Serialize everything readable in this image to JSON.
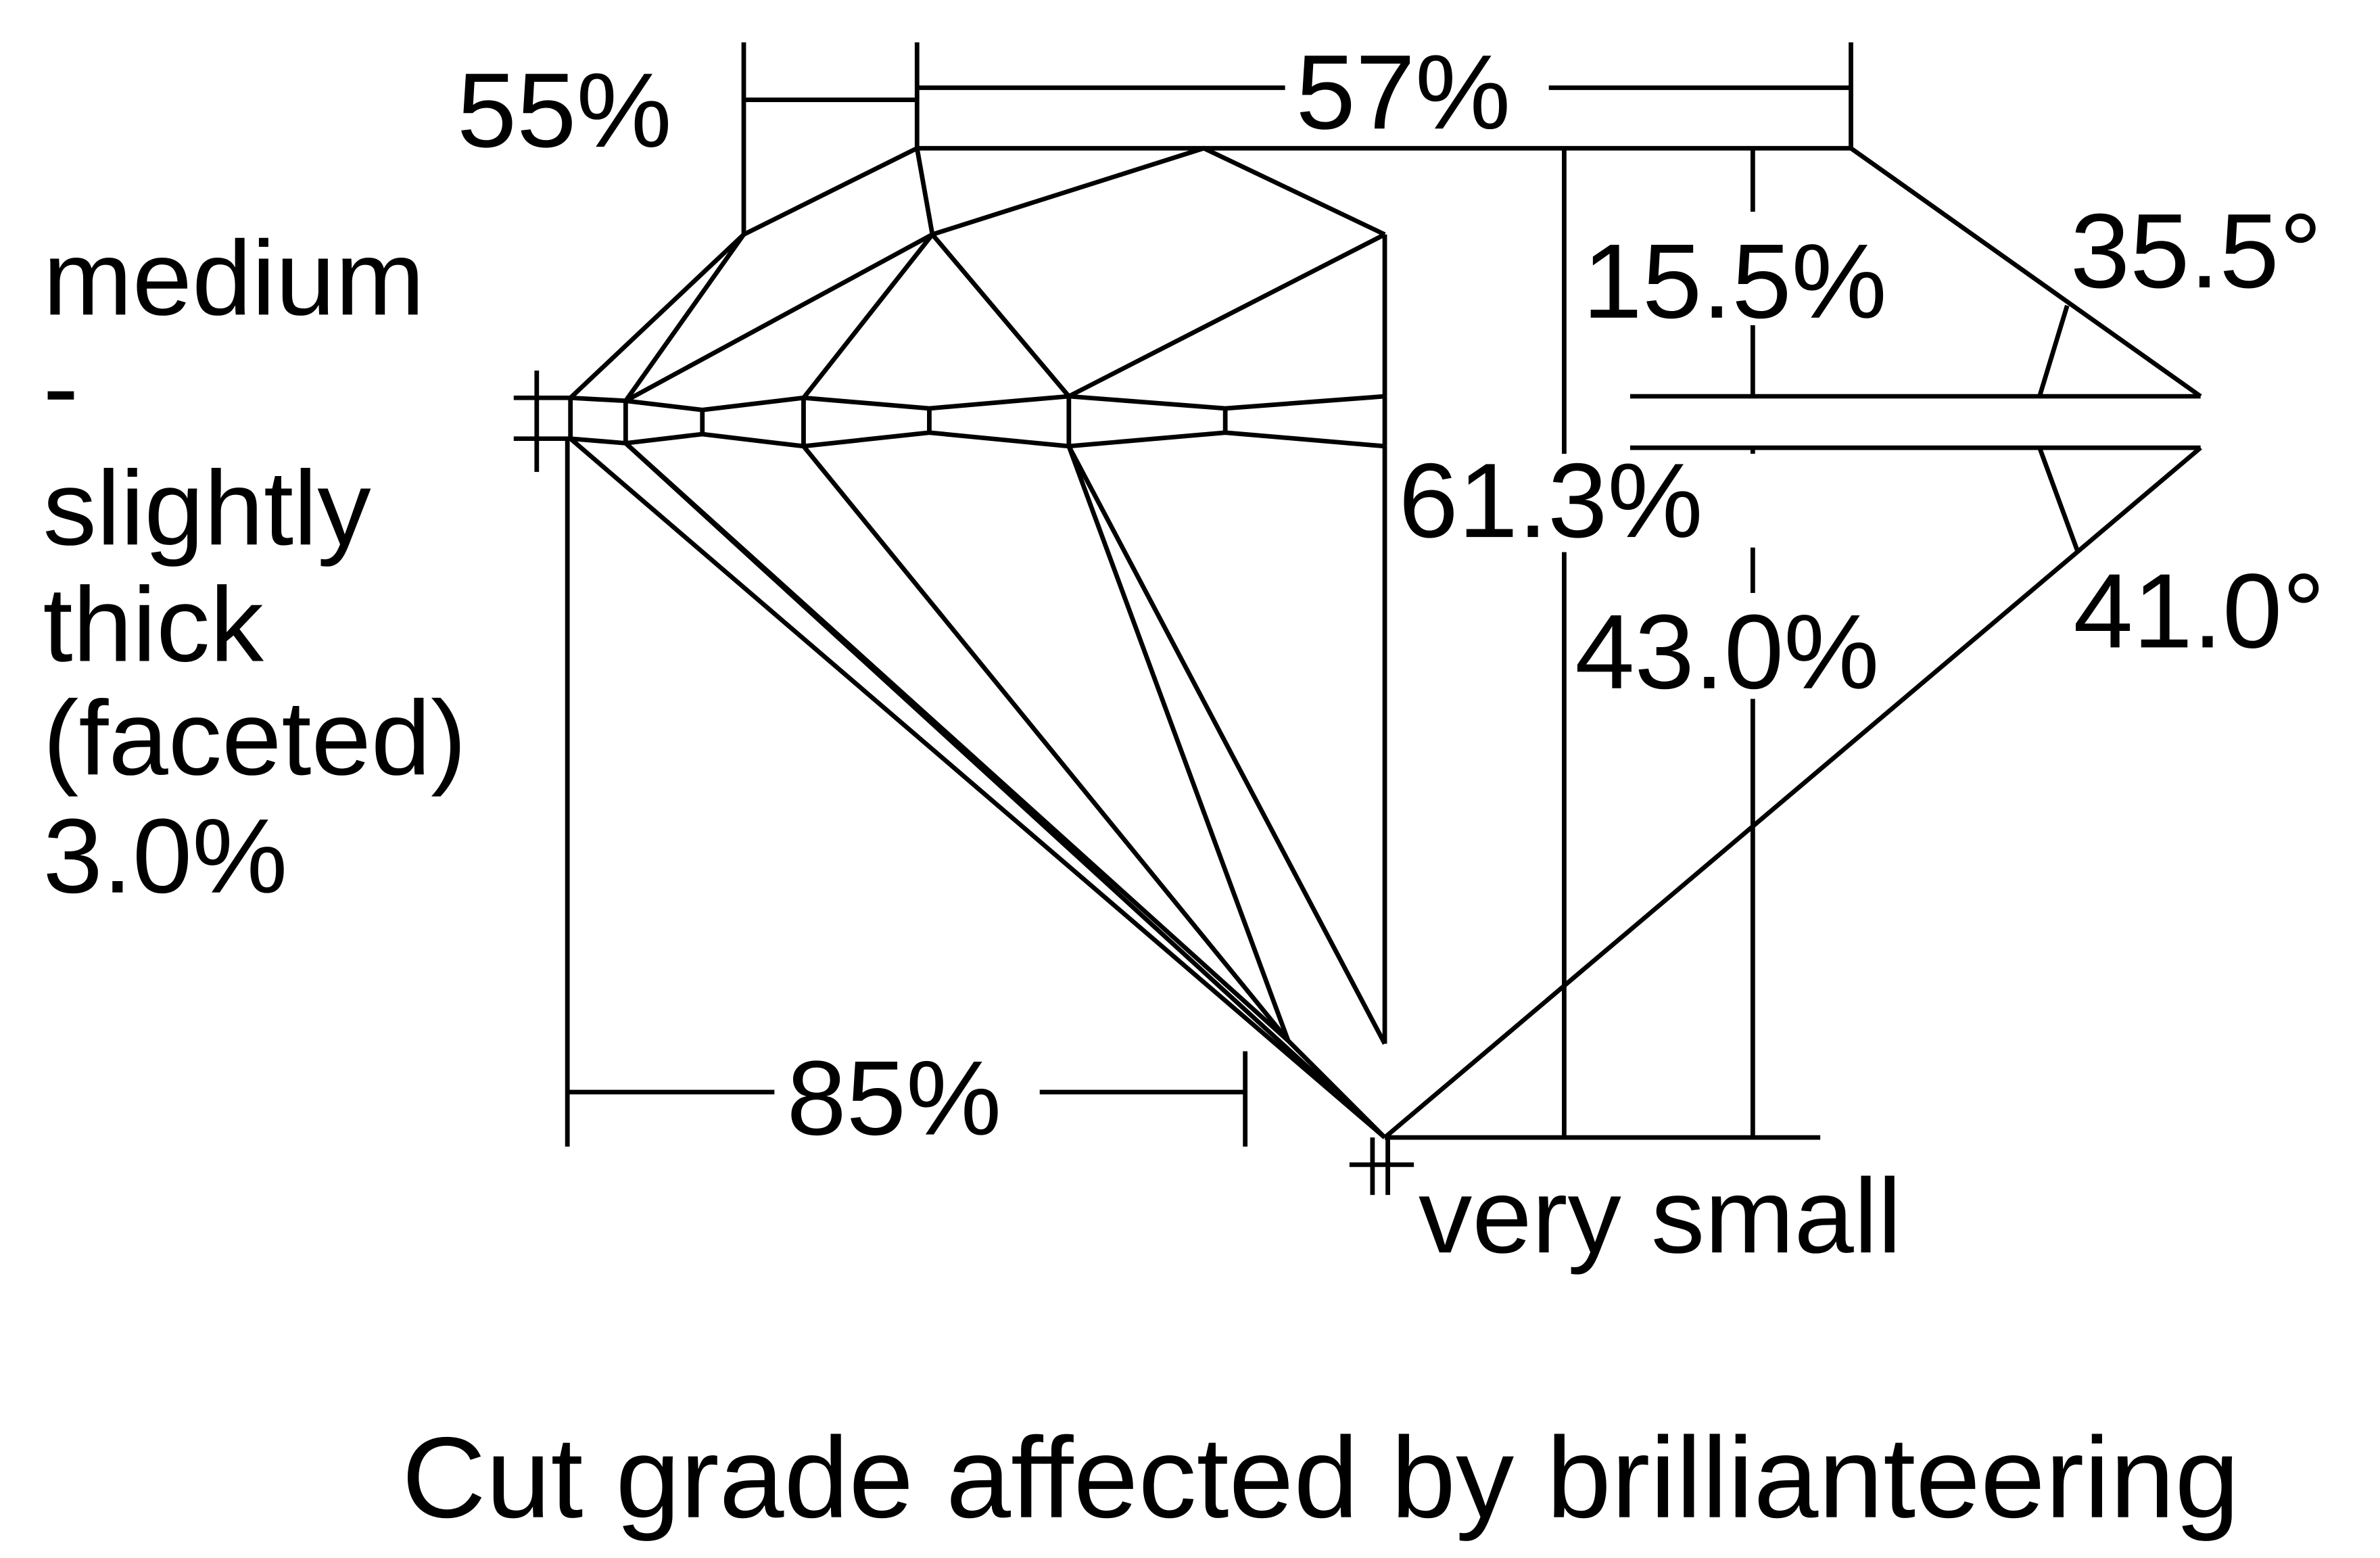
{
  "measurements": {
    "star_length": "55%",
    "table": "57%",
    "crown_height": "15.5%",
    "crown_angle": "35.5°",
    "girdle_lines": [
      "medium",
      "-",
      "slightly",
      "thick",
      "(faceted)"
    ],
    "girdle_thickness": "3.0%",
    "total_depth": "61.3%",
    "pavilion_depth": "43.0%",
    "pavilion_angle": "41.0°",
    "lower_half_length": "85%",
    "culet": "very small"
  },
  "caption": "Cut grade affected by brillianteering"
}
